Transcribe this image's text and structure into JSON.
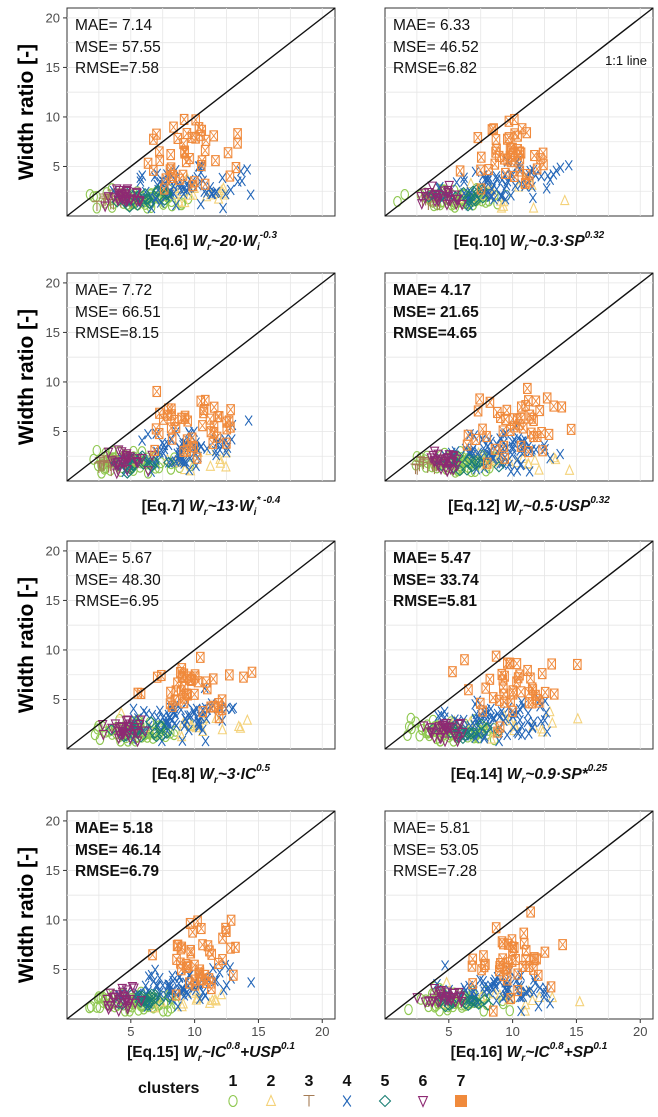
{
  "figure": {
    "ylabel": "Width ratio [-]",
    "one_to_one_label": "1:1 line",
    "legend": {
      "title": "clusters",
      "items": [
        {
          "label": "1",
          "color": "#8fc850",
          "marker": "circle-open"
        },
        {
          "label": "2",
          "color": "#f4d27a",
          "marker": "triangle-up-open"
        },
        {
          "label": "3",
          "color": "#a57c55",
          "marker": "tee"
        },
        {
          "label": "4",
          "color": "#2366b8",
          "marker": "x"
        },
        {
          "label": "5",
          "color": "#1a7f74",
          "marker": "diamond-open"
        },
        {
          "label": "6",
          "color": "#8e2a73",
          "marker": "triangle-down-open"
        },
        {
          "label": "7",
          "color": "#f08a3c",
          "marker": "square-filled"
        }
      ]
    }
  },
  "chart_data": [
    {
      "type": "scatter",
      "title": "[Eq.6] Wr~20·Wi-0.3",
      "xtitle": {
        "prefix": "[Eq.6] ",
        "eq": "W",
        "sub": "r",
        "rest": "~20·W",
        "sub2": "i",
        "sup": "-0.3"
      },
      "stats": {
        "mae": "MAE= 7.14",
        "mse": "MSE= 57.55",
        "rmse": "RMSE=7.58",
        "bold": false
      },
      "xlim": [
        0,
        21
      ],
      "ylim": [
        0,
        21
      ],
      "yticks": [
        5,
        10,
        15,
        20
      ],
      "xticks": [],
      "show_one_to_one_label": false
    },
    {
      "type": "scatter",
      "title": "[Eq.10] Wr~0.3·SP0.32",
      "xtitle": {
        "prefix": "[Eq.10] ",
        "eq": "W",
        "sub": "r",
        "rest": "~0.3·SP",
        "sub2": "",
        "sup": "0.32"
      },
      "stats": {
        "mae": "MAE= 6.33",
        "mse": "MSE= 46.52",
        "rmse": "RMSE=6.82",
        "bold": false
      },
      "xlim": [
        0,
        21
      ],
      "ylim": [
        0,
        21
      ],
      "yticks": [],
      "xticks": [],
      "show_one_to_one_label": true
    },
    {
      "type": "scatter",
      "title": "[Eq.7] Wr~13·Wi*-0.4",
      "xtitle": {
        "prefix": "[Eq.7] ",
        "eq": "W",
        "sub": "r",
        "rest": "~13·W",
        "sub2": "i",
        "sup": "* -0.4"
      },
      "stats": {
        "mae": "MAE= 7.72",
        "mse": "MSE= 66.51",
        "rmse": "RMSE=8.15",
        "bold": false
      },
      "xlim": [
        0,
        21
      ],
      "ylim": [
        0,
        21
      ],
      "yticks": [
        5,
        10,
        15,
        20
      ],
      "xticks": [],
      "show_one_to_one_label": false
    },
    {
      "type": "scatter",
      "title": "[Eq.12] Wr~0.5·USP0.32",
      "xtitle": {
        "prefix": "[Eq.12] ",
        "eq": "W",
        "sub": "r",
        "rest": "~0.5·USP",
        "sub2": "",
        "sup": "0.32"
      },
      "stats": {
        "mae": "MAE= 4.17",
        "mse": "MSE= 21.65",
        "rmse": "RMSE=4.65",
        "bold": true
      },
      "xlim": [
        0,
        21
      ],
      "ylim": [
        0,
        21
      ],
      "yticks": [],
      "xticks": [],
      "show_one_to_one_label": false
    },
    {
      "type": "scatter",
      "title": "[Eq.8] Wr~3·IC0.5",
      "xtitle": {
        "prefix": "[Eq.8] ",
        "eq": "W",
        "sub": "r",
        "rest": "~3·IC",
        "sub2": "",
        "sup": "0.5"
      },
      "stats": {
        "mae": "MAE= 5.67",
        "mse": "MSE= 48.30",
        "rmse": "RMSE=6.95",
        "bold": false
      },
      "xlim": [
        0,
        21
      ],
      "ylim": [
        0,
        21
      ],
      "yticks": [
        5,
        10,
        15,
        20
      ],
      "xticks": [],
      "show_one_to_one_label": false
    },
    {
      "type": "scatter",
      "title": "[Eq.14] Wr~0.9·SP*0.25",
      "xtitle": {
        "prefix": "[Eq.14] ",
        "eq": "W",
        "sub": "r",
        "rest": "~0.9·SP*",
        "sub2": "",
        "sup": "0.25"
      },
      "stats": {
        "mae": "MAE= 5.47",
        "mse": "MSE= 33.74",
        "rmse": "RMSE=5.81",
        "bold": true
      },
      "xlim": [
        0,
        21
      ],
      "ylim": [
        0,
        21
      ],
      "yticks": [],
      "xticks": [],
      "show_one_to_one_label": false
    },
    {
      "type": "scatter",
      "title": "[Eq.15] Wr~IC0.8+USP0.1",
      "xtitle": {
        "prefix": "[Eq.15] ",
        "eq": "W",
        "sub": "r",
        "rest": "~IC",
        "sub2": "",
        "sup": "0.8",
        "rest2": "+USP",
        "sup2": "0.1"
      },
      "stats": {
        "mae": "MAE= 5.18",
        "mse": "MSE= 46.14",
        "rmse": "RMSE=6.79",
        "bold": true
      },
      "xlim": [
        0,
        21
      ],
      "ylim": [
        0,
        21
      ],
      "yticks": [
        5,
        10,
        15,
        20
      ],
      "xticks": [
        5,
        10,
        15,
        20
      ],
      "show_one_to_one_label": false
    },
    {
      "type": "scatter",
      "title": "[Eq.16] Wr~IC0.8+SP0.1",
      "xtitle": {
        "prefix": "[Eq.16] ",
        "eq": "W",
        "sub": "r",
        "rest": "~IC",
        "sub2": "",
        "sup": "0.8",
        "rest2": "+SP",
        "sup2": "0.1"
      },
      "stats": {
        "mae": "MAE= 5.81",
        "mse": "MSE= 53.05",
        "rmse": "RMSE=7.28",
        "bold": false
      },
      "xlim": [
        0,
        21
      ],
      "ylim": [
        0,
        21
      ],
      "yticks": [],
      "xticks": [
        5,
        10,
        15,
        20
      ],
      "show_one_to_one_label": false
    }
  ]
}
